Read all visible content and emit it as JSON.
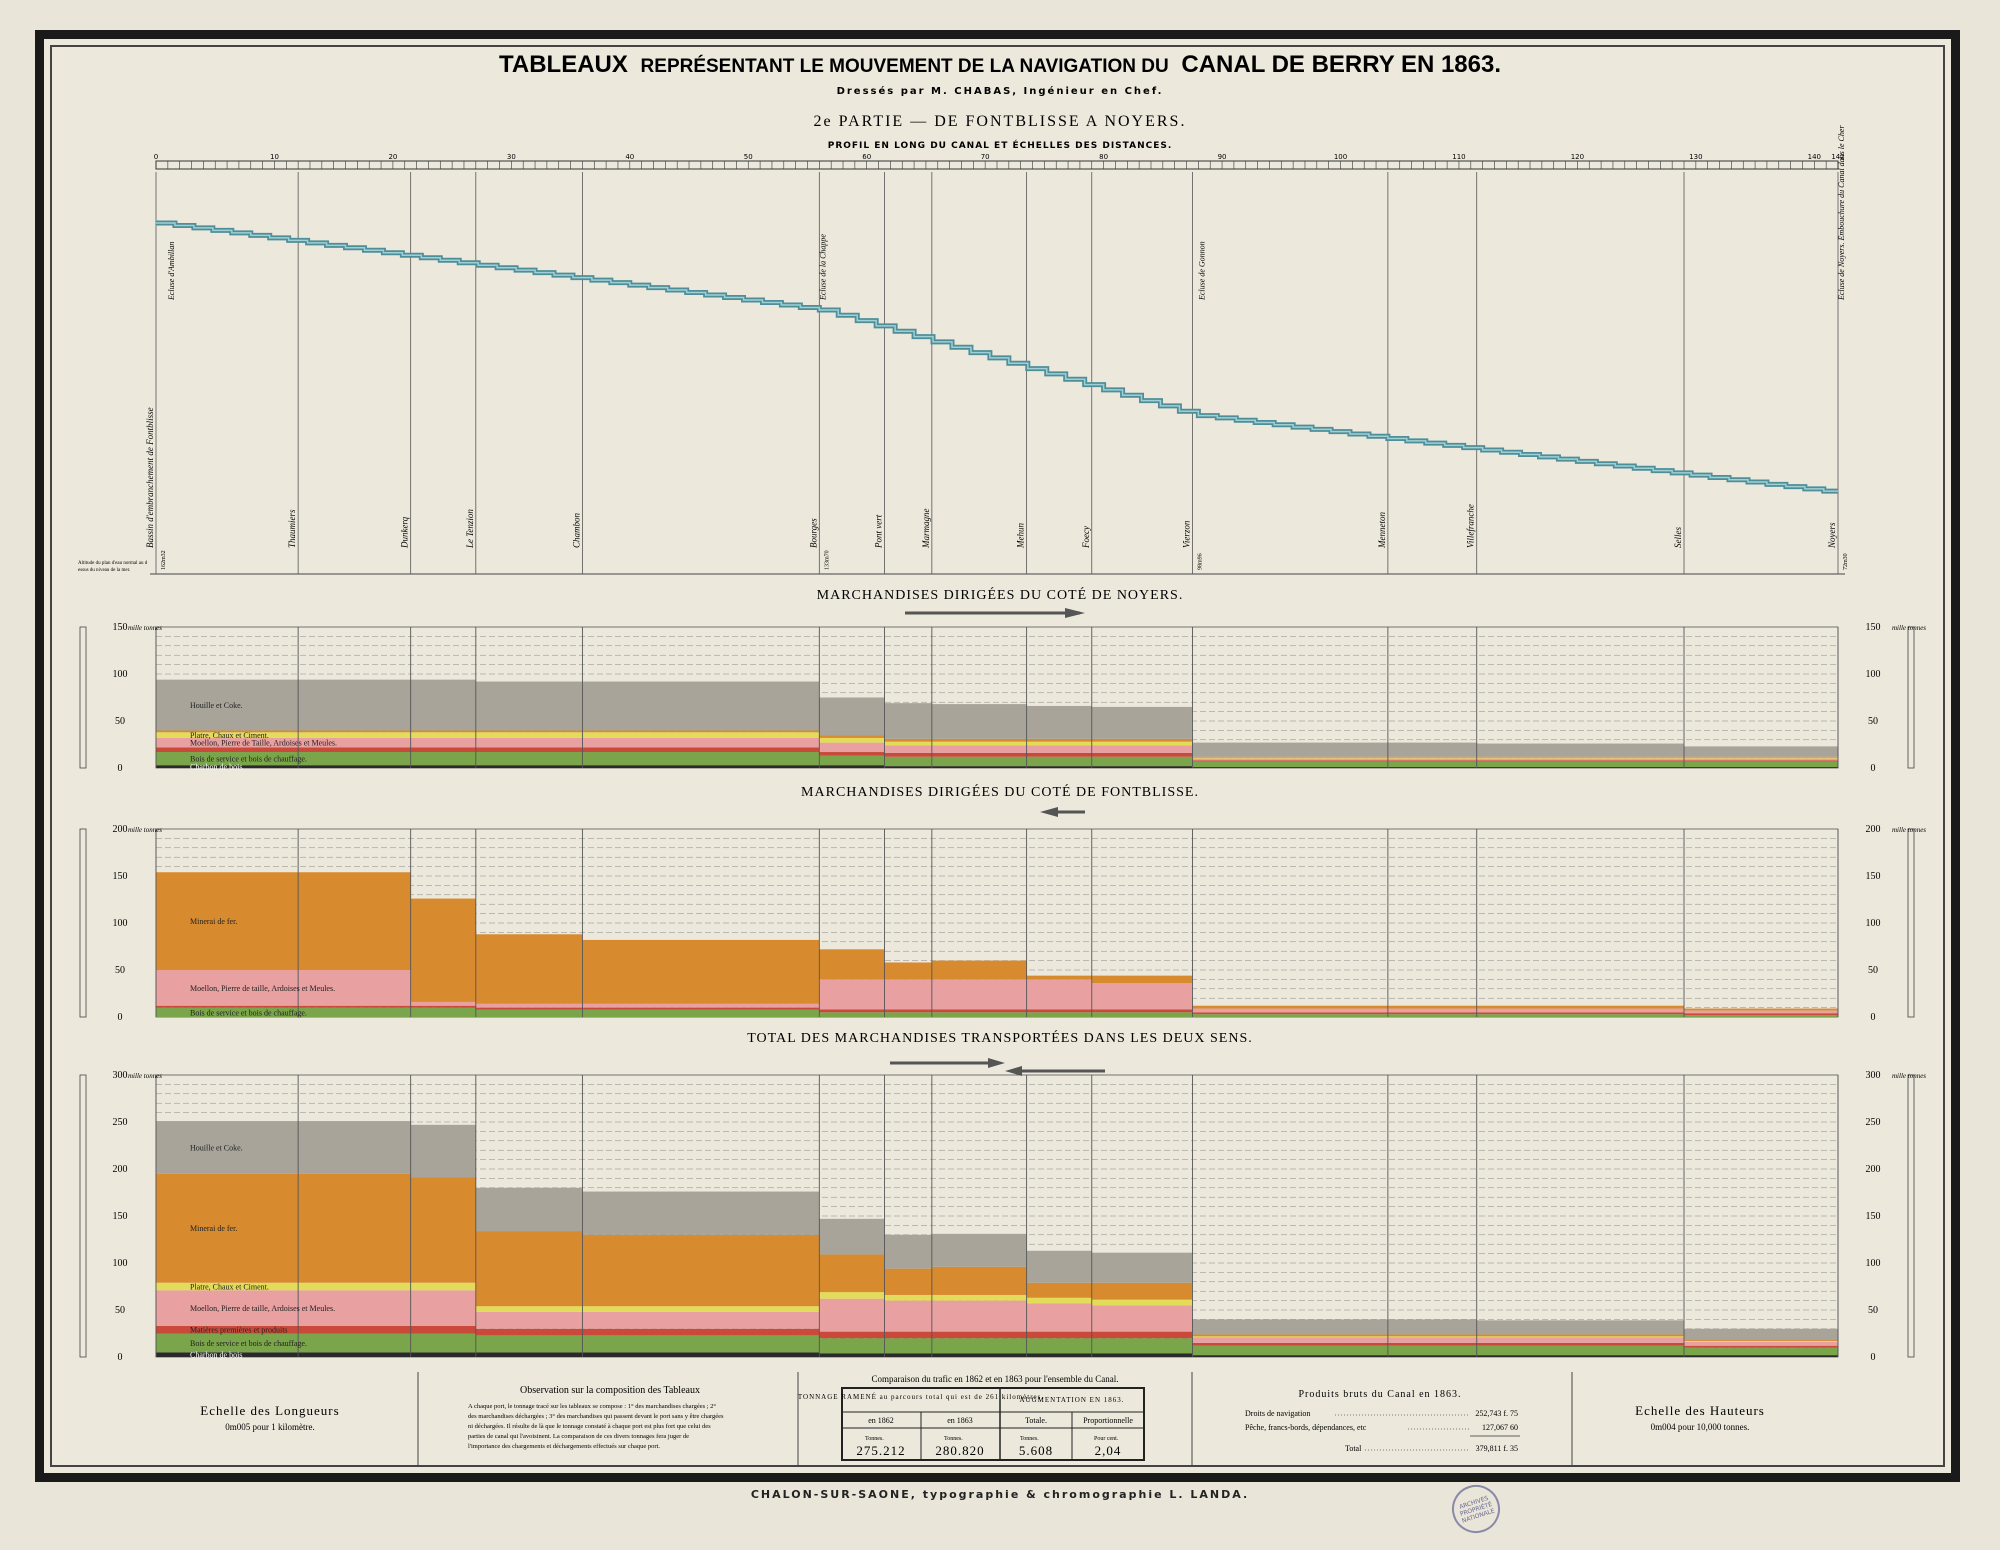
{
  "header": {
    "title_a": "TABLEAUX",
    "title_b": "REPRÉSENTANT LE MOUVEMENT DE LA NAVIGATION DU",
    "title_c": "CANAL DE BERRY EN 1863.",
    "subtitle": "Dressés par M. CHABAS, Ingénieur en Chef.",
    "part": "2e PARTIE — DE FONTBLISSE A NOYERS.",
    "profile_heading": "PROFIL EN LONG DU CANAL ET ÉCHELLES DES DISTANCES."
  },
  "distance_scale": {
    "ticks": [
      "0",
      "10",
      "20",
      "30",
      "40",
      "50",
      "60",
      "70",
      "80",
      "90",
      "100",
      "110",
      "120",
      "130",
      "140",
      "142"
    ],
    "max_km": 142
  },
  "profile": {
    "altitude_note": "Altitude du plan d'eau normal au dessus du niveau de la mer.",
    "altitudes": [
      {
        "km": 0,
        "label": "162m32"
      },
      {
        "km": 56,
        "label": "133m70"
      },
      {
        "km": 87.5,
        "label": "98m96"
      },
      {
        "km": 142,
        "label": "72m30"
      }
    ],
    "places": [
      {
        "km": 0,
        "label": "Bassin d'embranchement de Fontblisse"
      },
      {
        "km": 12,
        "label": "Thaumiers"
      },
      {
        "km": 21.5,
        "label": "Dunkerq"
      },
      {
        "km": 27,
        "label": "Le Tenzion"
      },
      {
        "km": 36,
        "label": "Chambon"
      },
      {
        "km": 56,
        "label": "Bourges"
      },
      {
        "km": 61.5,
        "label": "Pont vert"
      },
      {
        "km": 65.5,
        "label": "Marmagne"
      },
      {
        "km": 73.5,
        "label": "Mehun"
      },
      {
        "km": 79,
        "label": "Foecy"
      },
      {
        "km": 87.5,
        "label": "Vierzon"
      },
      {
        "km": 104,
        "label": "Menneton"
      },
      {
        "km": 111.5,
        "label": "Villefranche"
      },
      {
        "km": 129,
        "label": "Selles"
      },
      {
        "km": 142,
        "label": "Noyers"
      }
    ],
    "locks": [
      {
        "km": 0.5,
        "label": "Ecluse d'Ambillan"
      },
      {
        "km": 55.5,
        "label": "Ecluse de la Chappe"
      },
      {
        "km": 87.5,
        "label": "Ecluse de Gonnon"
      },
      {
        "km": 141.5,
        "label": "Ecluse de Noyers. Embouchure du Canal dans le Cher"
      }
    ]
  },
  "sections": {
    "noyers": {
      "title": "MARCHANDISES DIRIGÉES DU COTÉ DE NOYERS.",
      "unit": "mille tonnes"
    },
    "fontblisse": {
      "title": "MARCHANDISES DIRIGÉES DU COTÉ DE FONTBLISSE.",
      "unit": "mille tonnes"
    },
    "total": {
      "title": "TOTAL DES MARCHANDISES TRANSPORTÉES DANS LES DEUX SENS.",
      "unit": "mille tonnes"
    }
  },
  "chart_data": [
    {
      "type": "area",
      "id": "noyers",
      "title": "MARCHANDISES DIRIGÉES DU COTÉ DE NOYERS.",
      "ylabel": "mille tonnes",
      "ylim": [
        0,
        150
      ],
      "yticks": [
        0,
        50,
        100,
        150
      ],
      "segments_km": [
        0,
        12,
        21.5,
        27,
        36,
        56,
        61.5,
        65.5,
        73.5,
        79,
        87.5,
        104,
        111.5,
        129,
        142
      ],
      "series": [
        {
          "name": "Charbon de bois",
          "color": "#2a2a2a",
          "values": [
            3,
            3,
            3,
            3,
            3,
            3,
            2,
            2,
            2,
            2,
            1,
            1,
            1,
            1
          ]
        },
        {
          "name": "Bois de service et bois de chauffage.",
          "color": "#7aa54a",
          "values": [
            14,
            14,
            14,
            14,
            14,
            10,
            10,
            10,
            10,
            10,
            6,
            6,
            6,
            6
          ]
        },
        {
          "name": "",
          "color": "#c94a3a",
          "values": [
            5,
            5,
            5,
            5,
            5,
            4,
            4,
            4,
            4,
            4,
            1,
            1,
            1,
            1
          ]
        },
        {
          "name": "Moellon, Pierre de Taille, Ardoises et Meules.",
          "color": "#e8a0a0",
          "values": [
            10,
            10,
            10,
            10,
            10,
            10,
            8,
            8,
            8,
            8,
            2,
            2,
            2,
            2
          ]
        },
        {
          "name": "Platre, Chaux et Ciment.",
          "color": "#e3dc5a",
          "values": [
            6,
            6,
            6,
            6,
            6,
            5,
            4,
            4,
            4,
            4,
            1,
            1,
            1,
            1
          ]
        },
        {
          "name": "",
          "color": "#d88b2e",
          "values": [
            2,
            2,
            2,
            2,
            2,
            3,
            3,
            3,
            3,
            3,
            1,
            1,
            1,
            1
          ]
        },
        {
          "name": "Houille et Coke.",
          "color": "#a8a49a",
          "values": [
            54,
            54,
            54,
            52,
            52,
            40,
            38,
            37,
            35,
            34,
            15,
            15,
            14,
            11
          ]
        }
      ]
    },
    {
      "type": "area",
      "id": "fontblisse",
      "title": "MARCHANDISES DIRIGÉES DU COTÉ DE FONTBLISSE.",
      "ylabel": "mille tonnes",
      "ylim": [
        0,
        200
      ],
      "yticks": [
        0,
        50,
        100,
        150,
        200
      ],
      "segments_km": [
        0,
        12,
        21.5,
        27,
        36,
        56,
        61.5,
        65.5,
        73.5,
        79,
        87.5,
        104,
        111.5,
        129,
        142
      ],
      "series": [
        {
          "name": "Bois de service et bois de chauffage.",
          "color": "#7aa54a",
          "values": [
            10,
            10,
            10,
            8,
            8,
            5,
            5,
            5,
            5,
            5,
            3,
            3,
            3,
            2
          ]
        },
        {
          "name": "",
          "color": "#c94a3a",
          "values": [
            2,
            2,
            2,
            2,
            2,
            3,
            3,
            3,
            3,
            3,
            2,
            2,
            2,
            2
          ]
        },
        {
          "name": "Moellon, Pierre de taille, Ardoises et Meules.",
          "color": "#e8a0a0",
          "values": [
            38,
            38,
            4,
            4,
            4,
            32,
            32,
            32,
            32,
            28,
            4,
            4,
            4,
            3
          ]
        },
        {
          "name": "Minerai de fer.",
          "color": "#d88b2e",
          "values": [
            104,
            104,
            110,
            74,
            68,
            32,
            18,
            20,
            4,
            8,
            3,
            3,
            3,
            2
          ]
        }
      ]
    },
    {
      "type": "area",
      "id": "total",
      "title": "TOTAL DES MARCHANDISES TRANSPORTÉES DANS LES DEUX SENS.",
      "ylabel": "mille tonnes",
      "ylim": [
        0,
        300
      ],
      "yticks": [
        0,
        50,
        100,
        150,
        200,
        250,
        300
      ],
      "segments_km": [
        0,
        12,
        21.5,
        27,
        36,
        56,
        61.5,
        65.5,
        73.5,
        79,
        87.5,
        104,
        111.5,
        129,
        142
      ],
      "series": [
        {
          "name": "Charbon de bois",
          "color": "#2a2a2a",
          "values": [
            5,
            5,
            5,
            5,
            5,
            4,
            4,
            4,
            4,
            4,
            2,
            2,
            2,
            2
          ]
        },
        {
          "name": "Bois de service et bois de chauffage.",
          "color": "#7aa54a",
          "values": [
            20,
            20,
            20,
            18,
            18,
            16,
            16,
            16,
            16,
            16,
            10,
            10,
            10,
            8
          ]
        },
        {
          "name": "Matières premières et produits",
          "color": "#c94a3a",
          "values": [
            8,
            8,
            8,
            7,
            7,
            7,
            7,
            7,
            7,
            7,
            3,
            3,
            3,
            2
          ]
        },
        {
          "name": "Moellon, Pierre de taille, Ardoises et Meules.",
          "color": "#e8a0a0",
          "values": [
            38,
            38,
            38,
            18,
            18,
            35,
            33,
            33,
            30,
            28,
            6,
            6,
            6,
            4
          ]
        },
        {
          "name": "Platre, Chaux et Ciment.",
          "color": "#e3dc5a",
          "values": [
            8,
            8,
            8,
            6,
            6,
            7,
            6,
            6,
            6,
            6,
            1,
            1,
            1,
            1
          ]
        },
        {
          "name": "Minerai de fer.",
          "color": "#d88b2e",
          "values": [
            116,
            116,
            112,
            80,
            76,
            40,
            28,
            30,
            16,
            18,
            2,
            2,
            2,
            1
          ]
        },
        {
          "name": "Houille et Coke.",
          "color": "#a8a49a",
          "values": [
            56,
            56,
            56,
            46,
            46,
            38,
            36,
            35,
            34,
            32,
            16,
            16,
            15,
            12
          ]
        }
      ]
    }
  ],
  "footer": {
    "echelle_longueurs": {
      "title": "Echelle des Longueurs",
      "value": "0m005 pour 1 kilomètre."
    },
    "observation": {
      "title": "Observation sur la composition des Tableaux",
      "text": "A chaque port, le tonnage tracé sur les tableaux se compose : 1° des marchandises chargées ; 2° des marchandises déchargées ; 3° des marchandises qui passent devant le port sans y être chargées ni déchargées. Il résulte de là que le tonnage constaté à chaque port est plus fort que celui des parties de canal qui l'avoisinent. La comparaison de ces divers tonnages fera juger de l'importance des chargements et déchargements effectués sur chaque port."
    },
    "comparaison": {
      "title": "Comparaison du trafic en 1862 et en 1863 pour l'ensemble du Canal.",
      "col_group_1": "TONNAGE RAMENÉ au parcours total qui est de 261 kilomètres.",
      "col_group_2": "AUGMENTATION EN 1863.",
      "headers": [
        "en 1862",
        "en 1863",
        "Totale.",
        "Proportionnelle"
      ],
      "units": [
        "Tonnes.",
        "Tonnes.",
        "Tonnes.",
        "Pour cent."
      ],
      "values": [
        "275.212",
        "280.820",
        "5.608",
        "2,04"
      ]
    },
    "produits": {
      "title": "Produits bruts du Canal en 1863.",
      "rows": [
        {
          "label": "Droits de navigation",
          "value": "252,743 f. 75"
        },
        {
          "label": "Pêche, francs-bords, dépendances, etc",
          "value": "127,067 60"
        }
      ],
      "total_label": "Total",
      "total_value": "379,811 f. 35"
    },
    "echelle_hauteurs": {
      "title": "Echelle des Hauteurs",
      "value": "0m004 pour 10,000 tonnes."
    }
  },
  "imprint": "CHALON-SUR-SAONE, typographie & chromographie L. LANDA.",
  "stamp": "ARCHIVES PROPRIÉTÉ NATIONALE"
}
